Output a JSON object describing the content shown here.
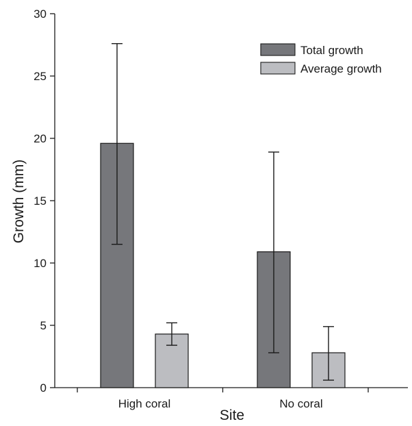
{
  "chart_data": {
    "type": "bar",
    "title": "",
    "xlabel": "Site",
    "ylabel": "Growth (mm)",
    "categories": [
      "High coral",
      "No coral"
    ],
    "ylim": [
      0,
      30
    ],
    "yticks": [
      0,
      5,
      10,
      15,
      20,
      25,
      30
    ],
    "grid": false,
    "legend_position": "top-right",
    "series": [
      {
        "name": "Total growth",
        "color": "#76777b",
        "values": [
          19.6,
          10.9
        ],
        "error_low": [
          11.5,
          2.8
        ],
        "error_high": [
          27.6,
          18.9
        ]
      },
      {
        "name": "Average growth",
        "color": "#bcbdc1",
        "values": [
          4.3,
          2.8
        ],
        "error_low": [
          3.4,
          0.6
        ],
        "error_high": [
          5.2,
          4.9
        ]
      }
    ]
  }
}
